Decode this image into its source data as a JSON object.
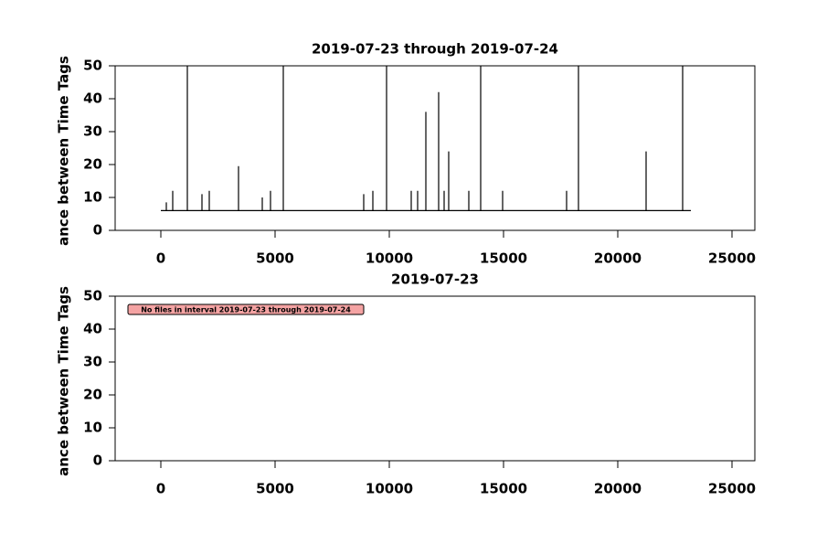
{
  "chart_data": [
    {
      "type": "line",
      "title": "2019-07-23 through 2019-07-24",
      "y_label": "ance between Time Tags",
      "x": [
        0,
        240,
        240,
        240,
        520,
        520,
        520,
        1160,
        1160,
        1160,
        1800,
        1800,
        1800,
        2120,
        2120,
        2120,
        3400,
        3400,
        3400,
        4440,
        4440,
        4440,
        4800,
        4800,
        4800,
        5360,
        5360,
        5360,
        8880,
        8880,
        8880,
        9280,
        9280,
        9280,
        9880,
        9880,
        9880,
        10960,
        10960,
        10960,
        11240,
        11240,
        11240,
        11600,
        11600,
        11600,
        12160,
        12160,
        12160,
        12400,
        12400,
        12400,
        12600,
        12600,
        12600,
        13480,
        13480,
        13480,
        14000,
        14000,
        14000,
        14960,
        14960,
        14960,
        17760,
        17760,
        17760,
        18280,
        18280,
        18280,
        21240,
        21240,
        21240,
        22840,
        22840,
        22840,
        23200
      ],
      "values": [
        6,
        6,
        8.5,
        6,
        6,
        12,
        6,
        6,
        50,
        6,
        6,
        11,
        6,
        6,
        12,
        6,
        6,
        19.5,
        6,
        6,
        10,
        6,
        6,
        12,
        6,
        6,
        50,
        6,
        6,
        11,
        6,
        6,
        12,
        6,
        6,
        50,
        6,
        6,
        12,
        6,
        6,
        12,
        6,
        6,
        36,
        6,
        6,
        42,
        6,
        6,
        12,
        6,
        6,
        24,
        6,
        6,
        12,
        6,
        6,
        50,
        6,
        6,
        12,
        6,
        6,
        12,
        6,
        6,
        50,
        6,
        6,
        24,
        6,
        6,
        50,
        6,
        6
      ],
      "color": "#000000",
      "xlim": [
        -2000,
        26000
      ],
      "xticks": [
        0,
        5000,
        10000,
        15000,
        20000,
        25000
      ],
      "ylim": [
        0,
        50
      ],
      "yticks": [
        0,
        10,
        20,
        30,
        40,
        50
      ]
    },
    {
      "type": "line",
      "title": "2019-07-23",
      "y_label": "ance between Time Tags",
      "annotation": "No files in interval 2019-07-23 through 2019-07-24",
      "xlim": [
        -2000,
        26000
      ],
      "xticks": [
        0,
        5000,
        10000,
        15000,
        20000,
        25000
      ],
      "ylim": [
        0,
        50
      ],
      "yticks": [
        0,
        10,
        20,
        30,
        40,
        50
      ]
    }
  ]
}
